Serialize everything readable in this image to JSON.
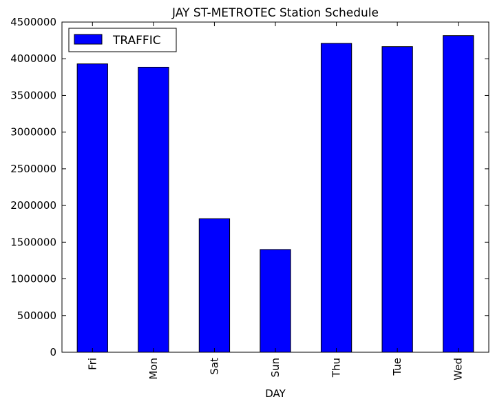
{
  "chart_data": {
    "type": "bar",
    "title": "JAY ST-METROTEC Station Schedule",
    "xlabel": "DAY",
    "ylabel": "",
    "categories": [
      "Fri",
      "Mon",
      "Sat",
      "Sun",
      "Thu",
      "Tue",
      "Wed"
    ],
    "series": [
      {
        "name": "TRAFFIC",
        "values": [
          3930000,
          3885000,
          1820000,
          1400000,
          4210000,
          4165000,
          4315000
        ]
      }
    ],
    "ylim": [
      0,
      4500000
    ],
    "yticks": [
      "0",
      "500000",
      "1000000",
      "1500000",
      "2000000",
      "2500000",
      "3000000",
      "3500000",
      "4000000",
      "4500000"
    ],
    "grid": false,
    "legend": "top-left",
    "colors": {
      "bar": "#0000ff",
      "edge": "#000000"
    }
  }
}
